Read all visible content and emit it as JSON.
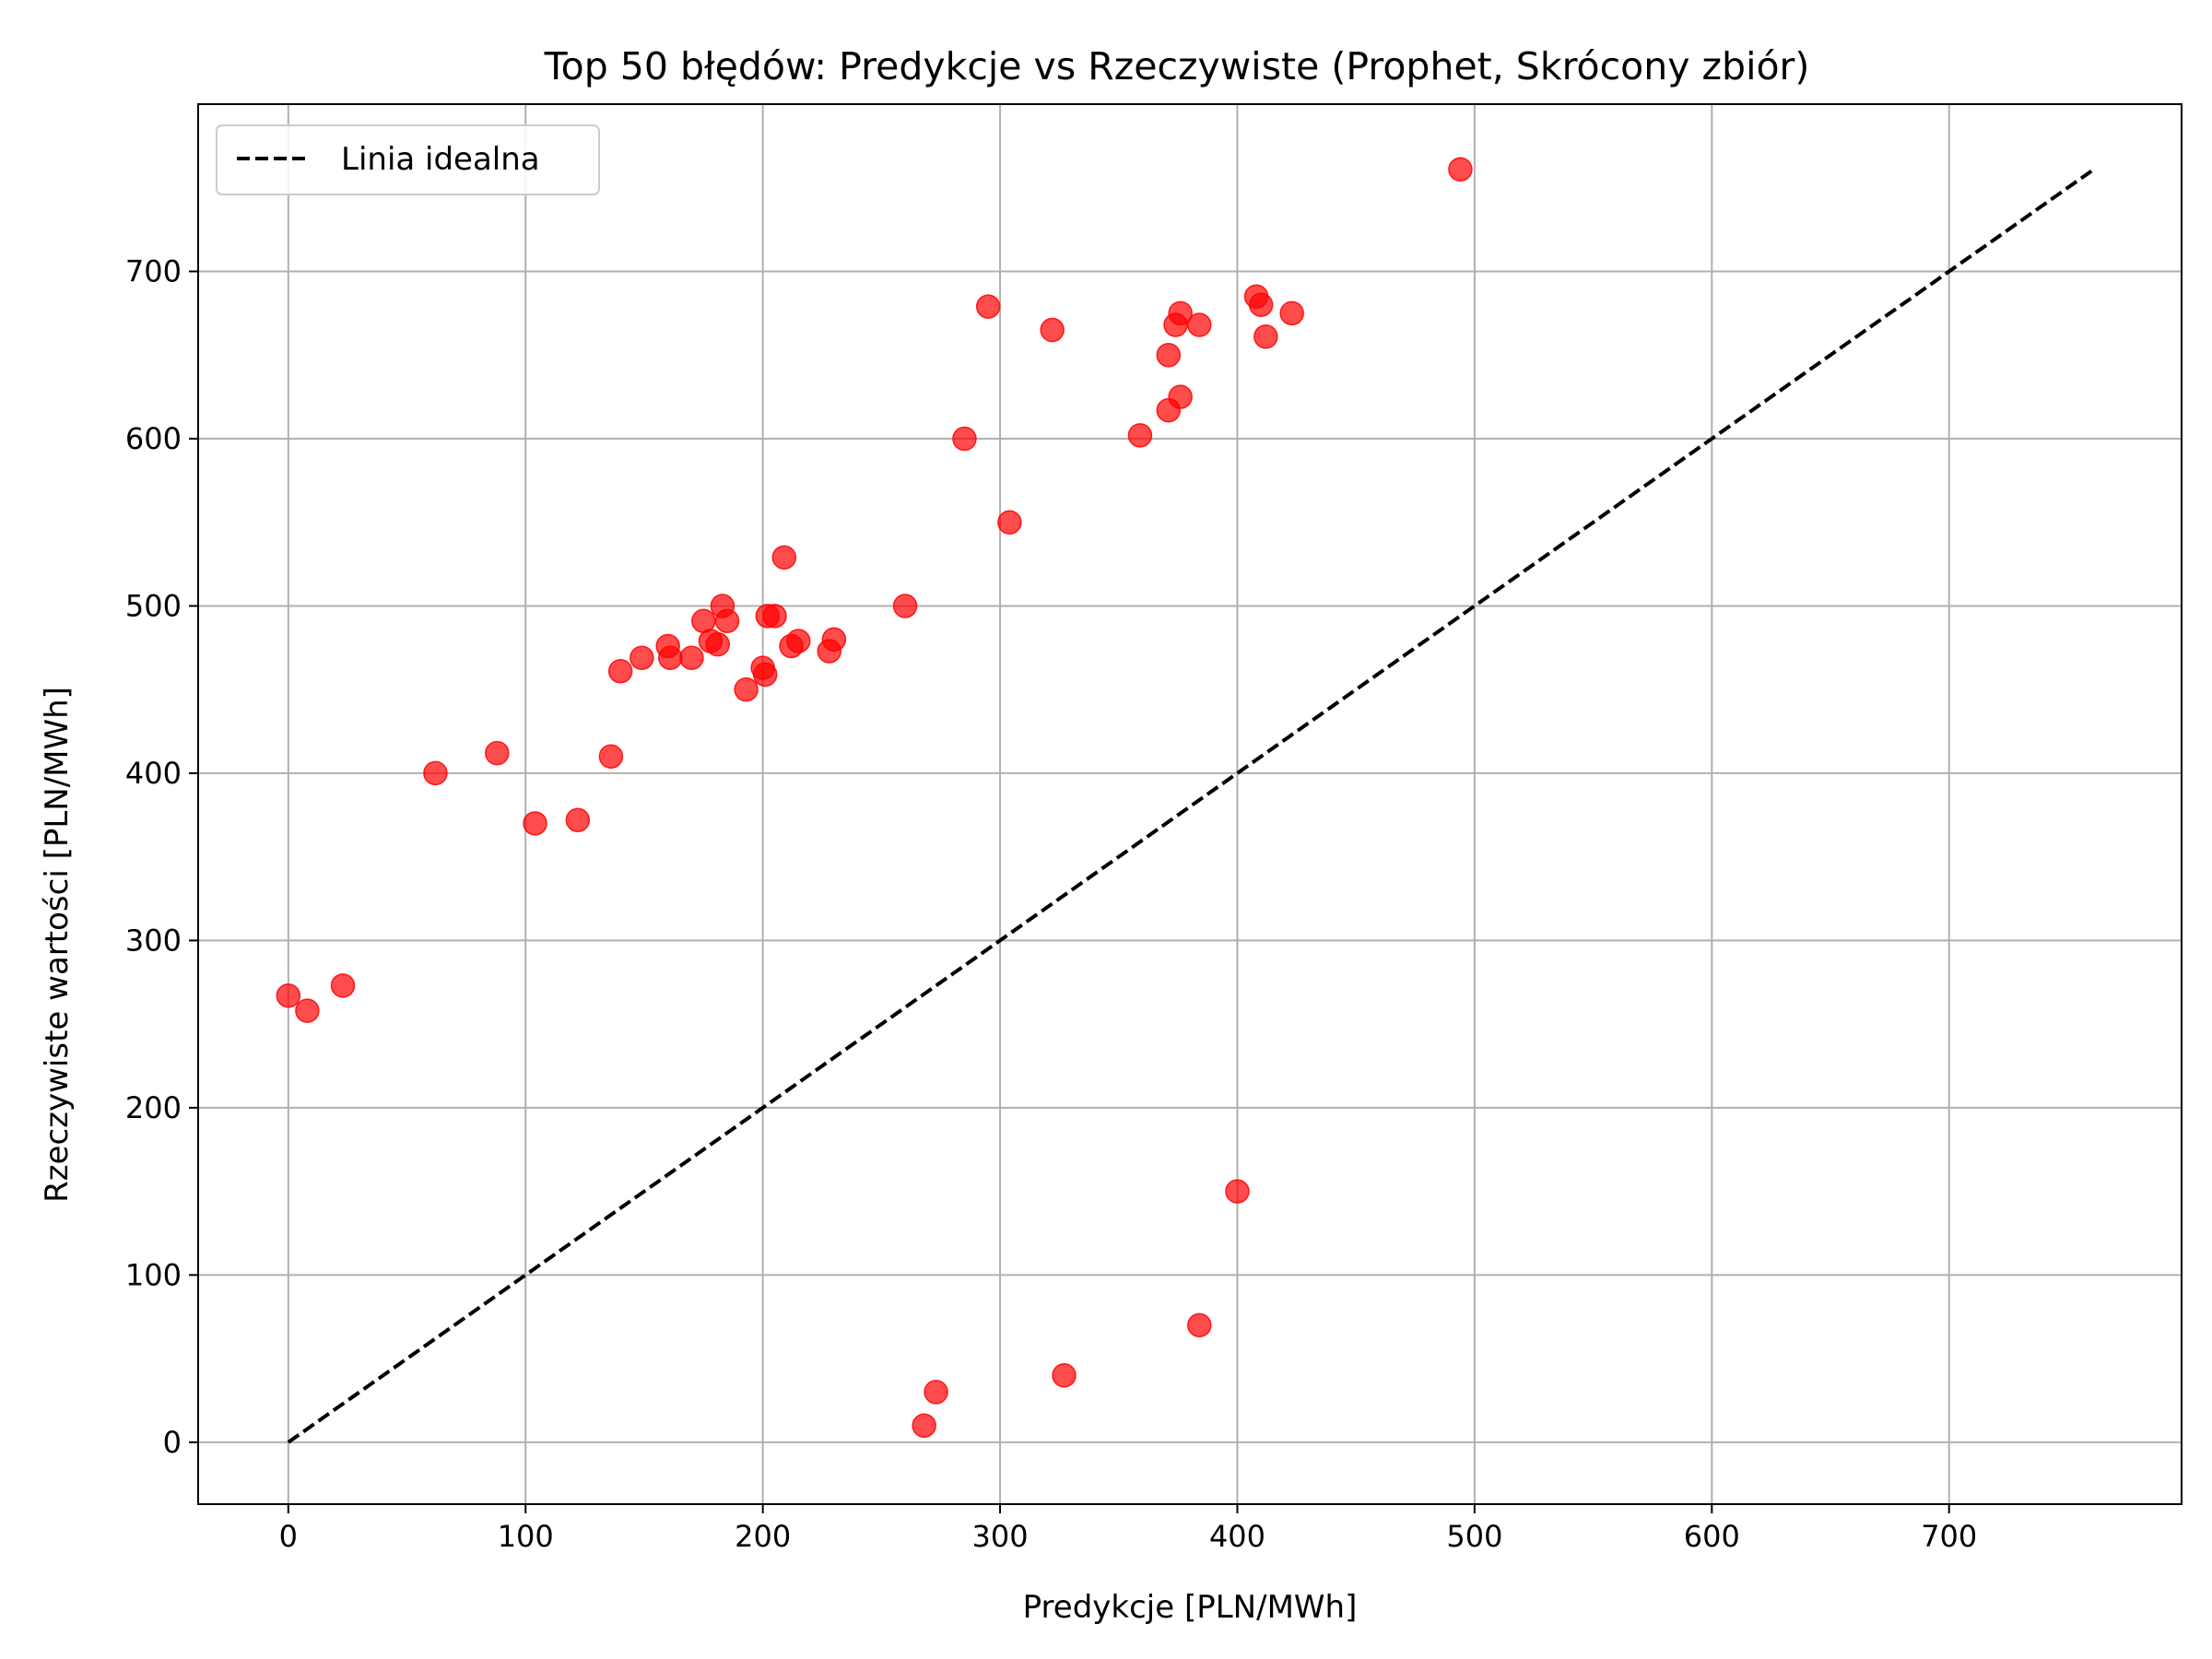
{
  "chart_data": {
    "type": "scatter",
    "title": "Top 50 błędów: Predykcje vs Rzeczywiste (Prophet, Skrócony zbiór)",
    "xlabel": "Predykcje [PLN/MWh]",
    "ylabel": "Rzeczywiste wartości [PLN/MWh]",
    "xlim": [
      -38,
      798
    ],
    "ylim": [
      -37,
      800
    ],
    "xticks": [
      0,
      100,
      200,
      300,
      400,
      500,
      600,
      700
    ],
    "yticks": [
      0,
      100,
      200,
      300,
      400,
      500,
      600,
      700
    ],
    "grid": true,
    "legend_position": "top-left",
    "colors": {
      "points": "#ff0000",
      "ideal_line": "#000000",
      "grid": "#b0b0b0"
    },
    "ideal_line": {
      "name": "Linia idealna",
      "x": [
        0,
        760
      ],
      "y": [
        0,
        760
      ],
      "style": "dashed"
    },
    "series": [
      {
        "x": [
          0,
          8,
          23,
          62,
          88,
          104,
          122,
          136,
          140,
          149,
          160,
          161,
          170,
          175,
          178,
          181,
          183,
          185,
          193,
          200,
          201,
          202,
          205,
          209,
          212,
          215,
          228,
          230,
          260,
          268,
          273,
          285,
          295,
          304,
          322,
          327,
          359,
          371,
          371,
          374,
          376,
          376,
          384,
          384,
          400,
          408,
          410,
          412,
          423,
          494
        ],
        "y": [
          267,
          258,
          273,
          400,
          412,
          370,
          372,
          410,
          461,
          469,
          476,
          469,
          469,
          491,
          479,
          477,
          500,
          491,
          450,
          463,
          459,
          494,
          494,
          529,
          476,
          479,
          473,
          480,
          500,
          10,
          30,
          600,
          679,
          550,
          665,
          40,
          602,
          650,
          617,
          668,
          625,
          675,
          70,
          668,
          150,
          685,
          680,
          661,
          675,
          761
        ]
      }
    ]
  }
}
